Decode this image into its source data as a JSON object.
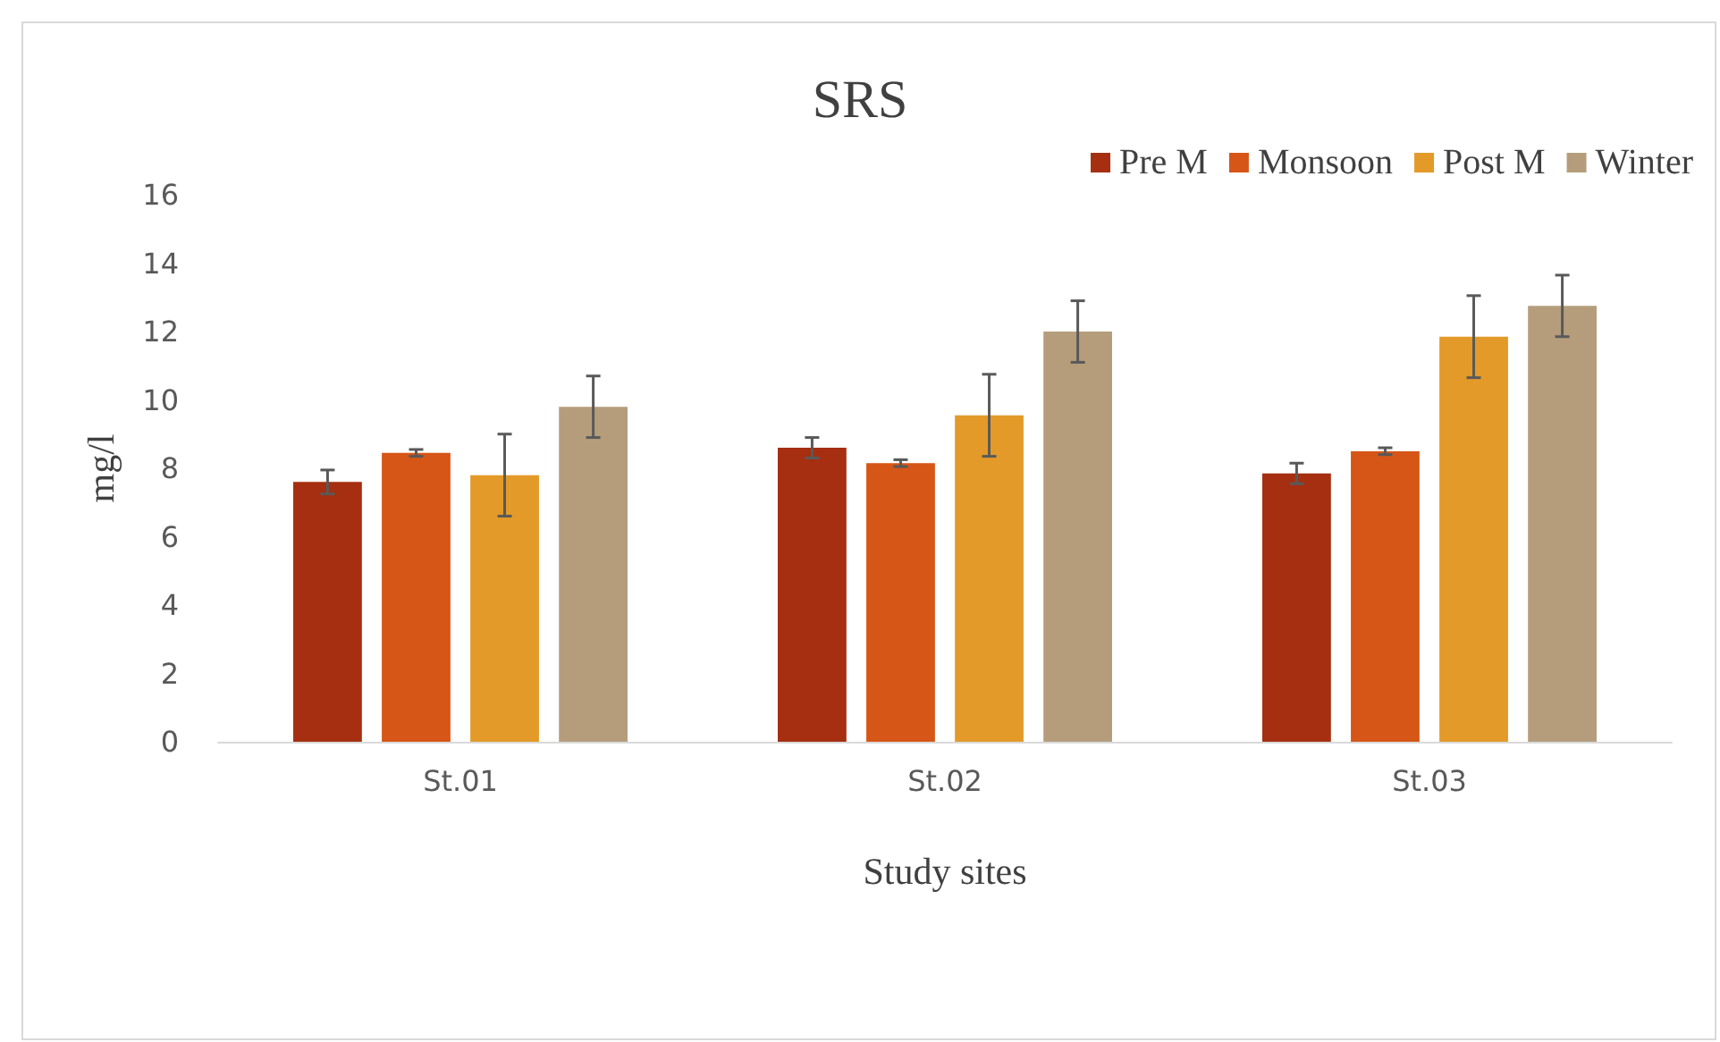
{
  "chart_data": {
    "type": "bar",
    "title": "SRS",
    "xlabel": "Study sites",
    "ylabel": "mg/l",
    "categories": [
      "St.01",
      "St.02",
      "St.03"
    ],
    "series": [
      {
        "name": "Pre M",
        "color": "#a52f10",
        "values": [
          7.6,
          8.6,
          7.85
        ],
        "errors": [
          0.35,
          0.3,
          0.3
        ]
      },
      {
        "name": "Monsoon",
        "color": "#d65617",
        "values": [
          8.45,
          8.15,
          8.5
        ],
        "errors": [
          0.1,
          0.1,
          0.1
        ]
      },
      {
        "name": "Post M",
        "color": "#e39a28",
        "values": [
          7.8,
          9.55,
          11.85
        ],
        "errors": [
          1.2,
          1.2,
          1.2
        ]
      },
      {
        "name": "Winter",
        "color": "#b59d7c",
        "values": [
          9.8,
          12.0,
          12.75
        ],
        "errors": [
          0.9,
          0.9,
          0.9
        ]
      }
    ],
    "ylim": [
      0,
      16
    ],
    "yticks": [
      0,
      2,
      4,
      6,
      8,
      10,
      12,
      14,
      16
    ],
    "grid": false,
    "legend": "top right"
  }
}
